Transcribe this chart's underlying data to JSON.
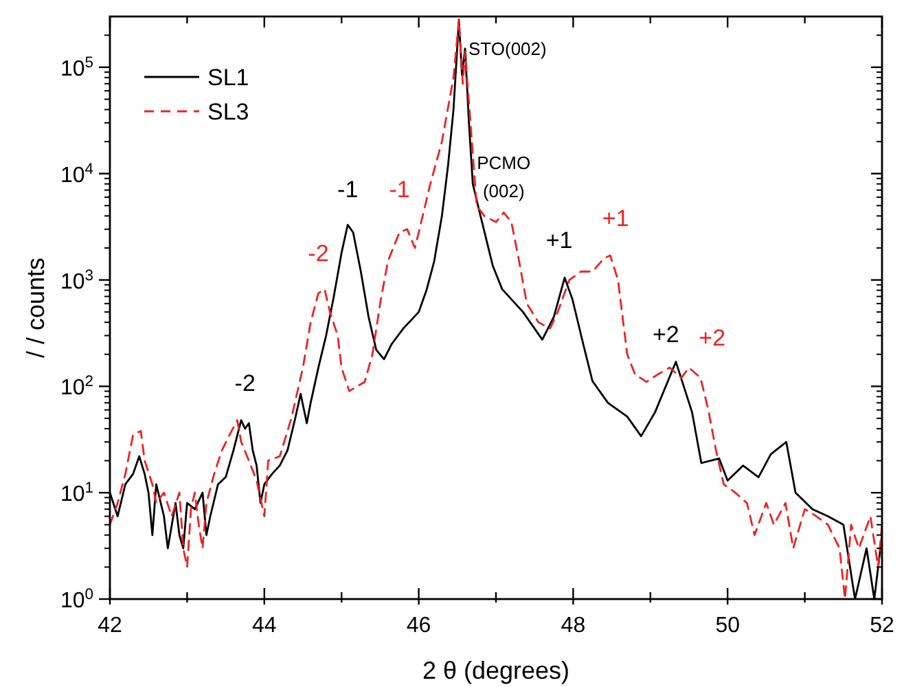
{
  "chart_data": {
    "type": "line",
    "xlabel": "2 θ (degrees)",
    "ylabel": "/ / counts",
    "log": "y",
    "xlim": [
      42,
      52
    ],
    "ylim": [
      1,
      300000
    ],
    "xticks": [
      42,
      {
        "value": 43,
        "label": null
      },
      44,
      {
        "value": 45,
        "label": null
      },
      46,
      {
        "value": 47,
        "label": null
      },
      48,
      {
        "value": 49,
        "label": null
      },
      50,
      {
        "value": 51,
        "label": null
      },
      52
    ],
    "yticks": [
      {
        "value": 1,
        "label": "10$^{0}$"
      },
      {
        "value": 10,
        "label": "10$^{1}$"
      },
      {
        "value": 100,
        "label": "10$^{2}$"
      },
      {
        "value": 1000,
        "label": "10$^{3}$"
      },
      {
        "value": 10000,
        "label": "10$^{4}$"
      },
      {
        "value": 100000,
        "label": "10$^{5}$"
      }
    ],
    "legend": "top left",
    "grid": false,
    "marker": "none",
    "series": [
      {
        "name": "SL1",
        "color": "#000000",
        "line_style": "solid",
        "x": [
          42.0,
          42.1,
          42.2,
          42.3,
          42.38,
          42.45,
          42.5,
          42.55,
          42.6,
          42.7,
          42.75,
          42.85,
          42.9,
          42.95,
          43.0,
          43.1,
          43.2,
          43.25,
          43.3,
          43.4,
          43.5,
          43.6,
          43.7,
          43.75,
          43.8,
          43.85,
          43.9,
          43.95,
          44.0,
          44.1,
          44.2,
          44.3,
          44.4,
          44.47,
          44.55,
          44.6,
          44.7,
          44.8,
          44.9,
          45.0,
          45.08,
          45.15,
          45.25,
          45.35,
          45.45,
          45.55,
          45.65,
          45.8,
          46.0,
          46.1,
          46.2,
          46.3,
          46.38,
          46.45,
          46.52,
          46.56,
          46.6,
          46.65,
          46.7,
          46.77,
          46.96,
          47.08,
          47.35,
          47.6,
          47.75,
          47.89,
          47.99,
          48.13,
          48.25,
          48.45,
          48.7,
          48.88,
          49.06,
          49.33,
          49.54,
          49.66,
          49.89,
          50.0,
          50.2,
          50.4,
          50.56,
          50.76,
          50.88,
          51.1,
          51.3,
          51.5,
          51.65,
          51.8,
          51.9,
          52.0
        ],
        "values": [
          10,
          6,
          12,
          15,
          22,
          15,
          10,
          4,
          12,
          6,
          3,
          8,
          4,
          3,
          8,
          7,
          10,
          4,
          6,
          12,
          14,
          25,
          48,
          40,
          45,
          25,
          18,
          8,
          12,
          15,
          18,
          25,
          50,
          85,
          45,
          70,
          150,
          300,
          700,
          1800,
          3300,
          2800,
          1200,
          450,
          220,
          180,
          250,
          350,
          500,
          800,
          1500,
          4000,
          12000,
          40000,
          280000,
          85000,
          150000,
          30000,
          8000,
          4900,
          1350,
          820,
          500,
          275,
          450,
          1050,
          660,
          250,
          112,
          70,
          52,
          34,
          57,
          170,
          57,
          19,
          21,
          13,
          18,
          14,
          23,
          30,
          10,
          7,
          6,
          5,
          1,
          3,
          1,
          4
        ]
      },
      {
        "name": "SL3",
        "color": "#ee2222",
        "line_style": "dashed",
        "x": [
          42.0,
          42.1,
          42.2,
          42.3,
          42.4,
          42.45,
          42.55,
          42.6,
          42.7,
          42.8,
          42.9,
          42.95,
          43.0,
          43.05,
          43.1,
          43.15,
          43.2,
          43.25,
          43.35,
          43.45,
          43.55,
          43.65,
          43.7,
          43.8,
          43.9,
          44.0,
          44.05,
          44.2,
          44.35,
          44.5,
          44.6,
          44.7,
          44.78,
          44.85,
          44.95,
          45.0,
          45.1,
          45.2,
          45.3,
          45.4,
          45.5,
          45.6,
          45.75,
          45.85,
          45.95,
          46.0,
          46.15,
          46.3,
          46.45,
          46.52,
          46.57,
          46.6,
          46.67,
          46.75,
          46.85,
          47.0,
          47.1,
          47.2,
          47.3,
          47.4,
          47.55,
          47.7,
          47.8,
          47.95,
          48.1,
          48.25,
          48.4,
          48.48,
          48.58,
          48.7,
          48.8,
          48.95,
          49.1,
          49.25,
          49.4,
          49.5,
          49.65,
          49.75,
          49.85,
          49.95,
          50.1,
          50.25,
          50.35,
          50.5,
          50.6,
          50.75,
          50.85,
          51.0,
          51.15,
          51.3,
          51.45,
          51.52,
          51.6,
          51.7,
          51.85,
          51.95,
          52.0
        ],
        "values": [
          5,
          8,
          15,
          35,
          38,
          20,
          12,
          8,
          10,
          6,
          10,
          3,
          2,
          7,
          10,
          5,
          3,
          8,
          15,
          25,
          35,
          48,
          30,
          20,
          13,
          6,
          20,
          22,
          50,
          150,
          400,
          750,
          820,
          500,
          300,
          150,
          90,
          100,
          110,
          200,
          600,
          1500,
          2800,
          3000,
          2000,
          2800,
          8000,
          20000,
          80000,
          280000,
          70000,
          140000,
          30000,
          5000,
          4000,
          3500,
          4300,
          3500,
          1500,
          600,
          400,
          350,
          500,
          1000,
          1200,
          1200,
          1600,
          1700,
          1000,
          200,
          130,
          110,
          130,
          150,
          120,
          150,
          120,
          60,
          25,
          12,
          10,
          8,
          4,
          8,
          5,
          8,
          3,
          7,
          6,
          5,
          3,
          1,
          5,
          3,
          6,
          2,
          5
        ]
      }
    ],
    "annotations": [
      "-2",
      "-2",
      "-1",
      "-1",
      "STO(002)",
      "PCMO",
      "(002)",
      "+1",
      "+1",
      "+2",
      "+2"
    ]
  }
}
